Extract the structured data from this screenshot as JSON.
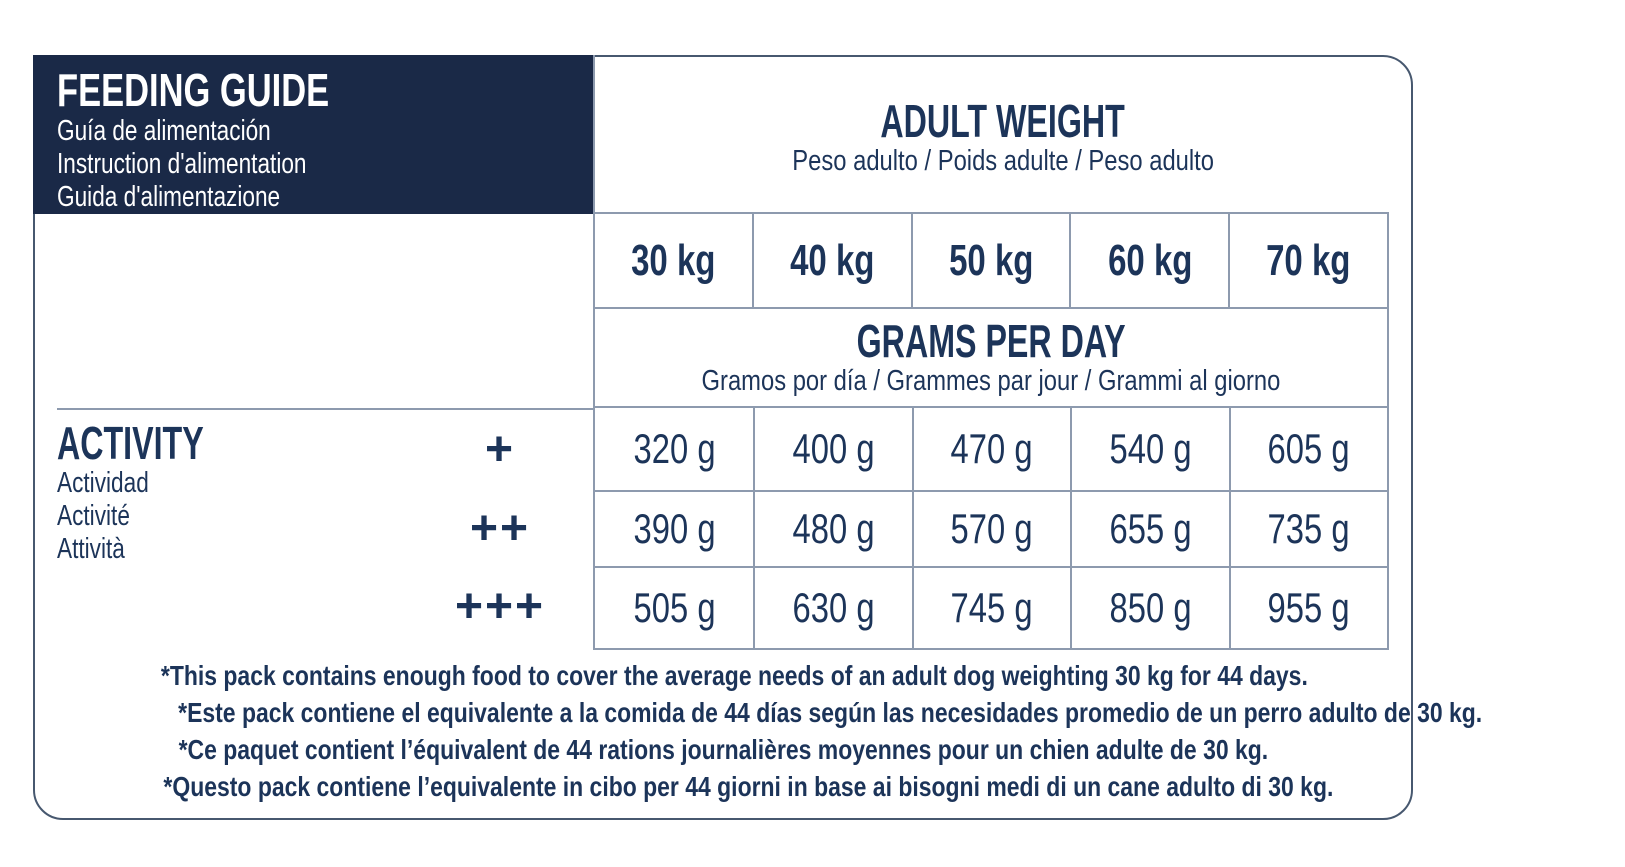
{
  "colors": {
    "navy_panel": "#1a2947",
    "text_navy": "#1c3459",
    "grid_line": "#8d9aae",
    "outer_border": "#47586f",
    "background": "#ffffff"
  },
  "feeding_guide": {
    "title": "FEEDING GUIDE",
    "subtitle_es": "Guía de alimentación",
    "subtitle_fr": "Instruction d'alimentation",
    "subtitle_it": "Guida d'alimentazione"
  },
  "adult_weight": {
    "title": "ADULT WEIGHT",
    "subtitle": "Peso adulto / Poids adulte / Peso adulto"
  },
  "weights": [
    "30 kg",
    "40 kg",
    "50 kg",
    "60 kg",
    "70 kg"
  ],
  "grams_per_day": {
    "title": "GRAMS PER DAY",
    "subtitle": "Gramos por día / Grammes par jour / Grammi al giorno"
  },
  "activity": {
    "title": "ACTIVITY",
    "subtitle_es": "Actividad",
    "subtitle_fr": "Activité",
    "subtitle_it": "Attività",
    "levels": [
      "+",
      "++",
      "+++"
    ]
  },
  "grams_table": {
    "rows": [
      [
        "320 g",
        "400 g",
        "470 g",
        "540 g",
        "605 g"
      ],
      [
        "390 g",
        "480 g",
        "570 g",
        "655 g",
        "735 g"
      ],
      [
        "505 g",
        "630 g",
        "745 g",
        "850 g",
        "955 g"
      ]
    ]
  },
  "footnotes": [
    "*This pack contains enough food to cover the average needs of an adult dog weighting 30 kg for 44 days.",
    "*Este pack contiene el equivalente a la comida de 44 días según las necesidades promedio de un perro adulto de 30 kg.",
    "*Ce paquet contient l’équivalent de 44 rations journalières moyennes pour un chien adulte de 30 kg.",
    "*Questo pack contiene l’equivalente in cibo per 44 giorni in base ai bisogni medi di un cane adulto di 30 kg."
  ]
}
